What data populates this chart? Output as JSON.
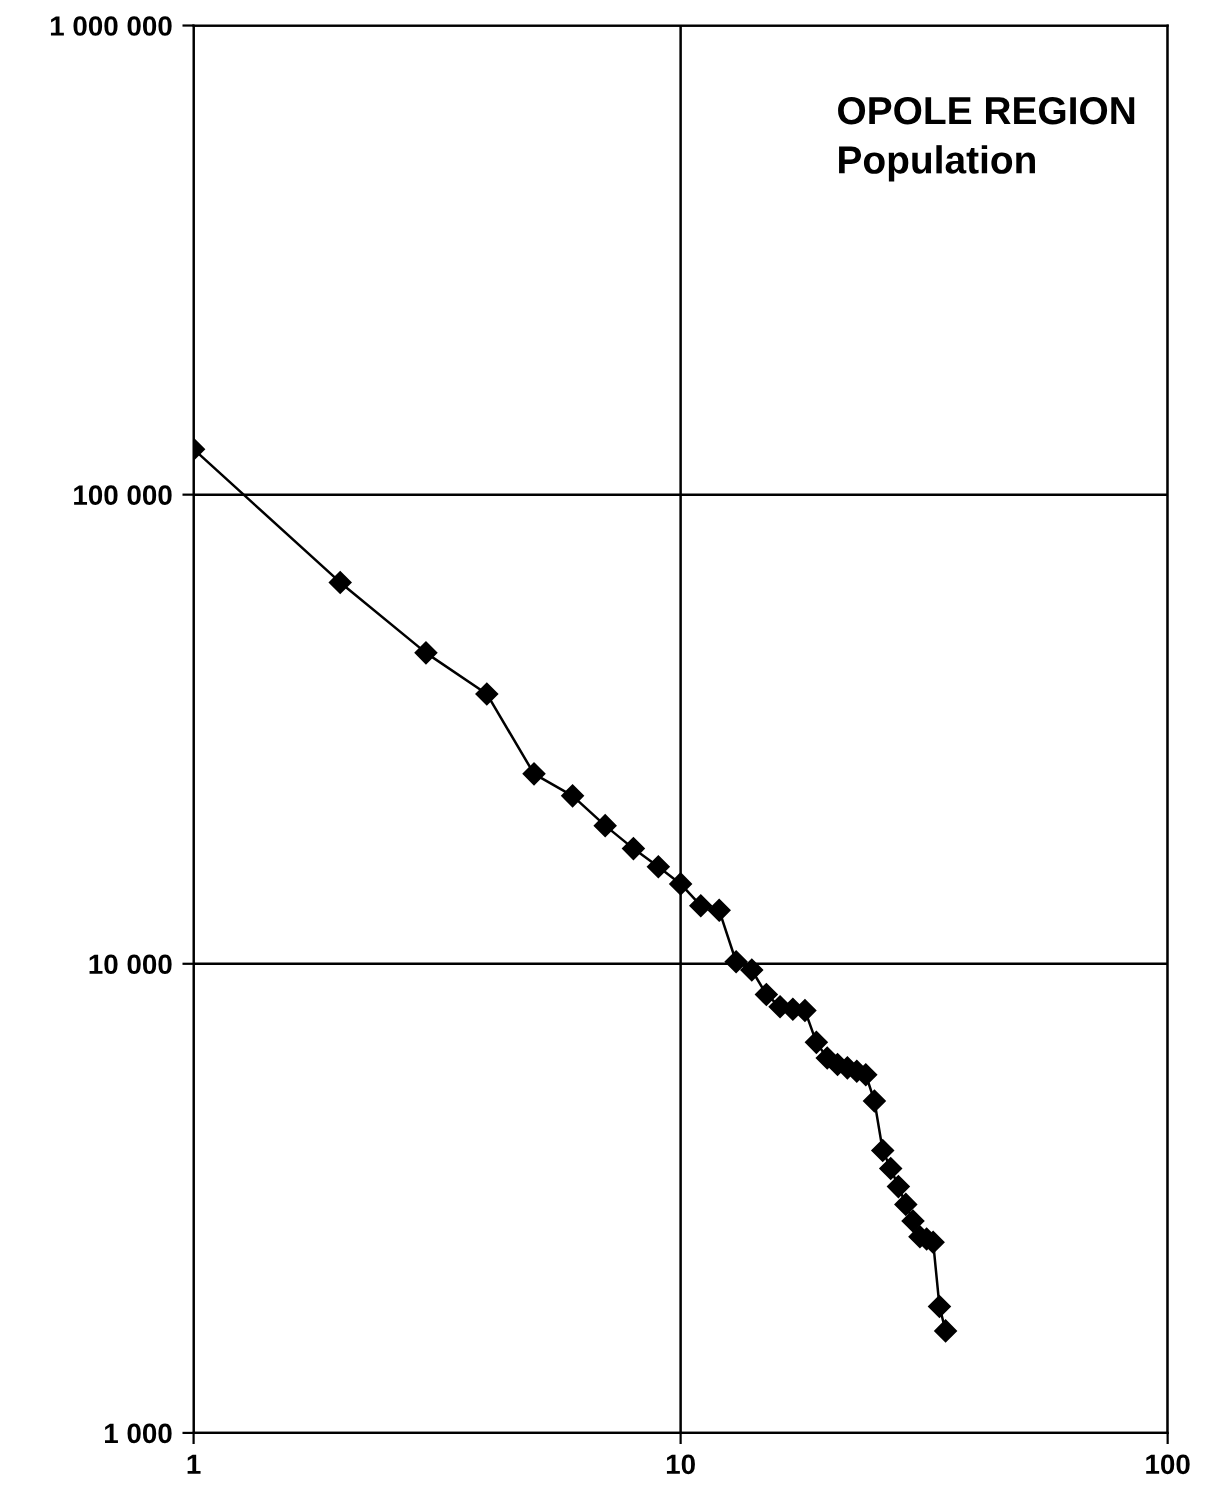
{
  "chart_data": {
    "type": "line",
    "title": "OPOLE REGION",
    "subtitle": "Population",
    "x": [
      1,
      2,
      3,
      4,
      5,
      6,
      7,
      8,
      9,
      10,
      11,
      12,
      13,
      14,
      15,
      16,
      17,
      18,
      19,
      20,
      21,
      22,
      23,
      24,
      25,
      26,
      27,
      28,
      29,
      30,
      31,
      32,
      33,
      34,
      35
    ],
    "series": [
      {
        "color": "#000000",
        "values": [
          125000,
          65000,
          46000,
          37600,
          25400,
          22800,
          19700,
          17600,
          16100,
          14800,
          13300,
          13000,
          10100,
          9700,
          8600,
          8100,
          8000,
          7950,
          6800,
          6300,
          6100,
          6000,
          5900,
          5800,
          5100,
          4000,
          3660,
          3350,
          3070,
          2830,
          2620,
          2590,
          2550,
          1860,
          1650
        ]
      }
    ],
    "xlim": [
      1,
      100
    ],
    "xticks": [
      1,
      10,
      100
    ],
    "ylim": [
      1000,
      1000000
    ],
    "yticks": [
      {
        "value": 1000,
        "label": "1 000"
      },
      {
        "value": 10000,
        "label": "10 000"
      },
      {
        "value": 100000,
        "label": "100 000"
      },
      {
        "value": 1000000,
        "label": "1 000 000"
      }
    ],
    "log": "xy",
    "grid": true,
    "marker": "diamond",
    "line_style": "solid"
  }
}
